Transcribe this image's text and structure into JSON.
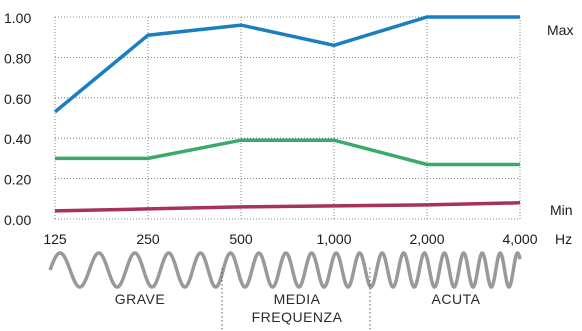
{
  "chart_data": {
    "type": "line",
    "categories": [
      "125",
      "250",
      "500",
      "1,000",
      "2,000",
      "4,000"
    ],
    "xlabel": "Hz",
    "ylim": [
      0,
      1
    ],
    "yticks": [
      "0.00",
      "0.20",
      "0.40",
      "0.60",
      "0.80",
      "1.00"
    ],
    "grid": true,
    "series": [
      {
        "values": [
          0.53,
          0.91,
          0.96,
          0.86,
          1.0,
          1.0
        ],
        "color": "#1a7fc1"
      },
      {
        "values": [
          0.3,
          0.3,
          0.39,
          0.39,
          0.27,
          0.27
        ],
        "color": "#3aaa6a"
      },
      {
        "values": [
          0.04,
          0.05,
          0.06,
          0.065,
          0.07,
          0.08
        ],
        "color": "#a8325a"
      }
    ],
    "annotations": {
      "max": "Max",
      "min": "Min"
    },
    "bands": [
      "GRAVE",
      "MEDIA",
      "FREQUENZA",
      "ACUTA"
    ]
  }
}
